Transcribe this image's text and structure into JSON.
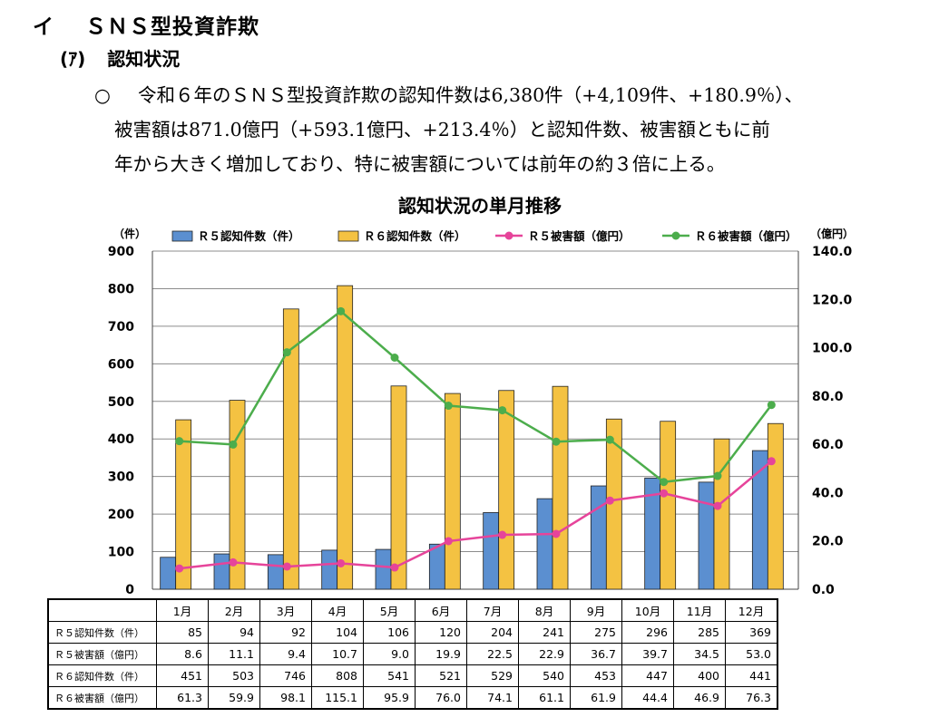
{
  "heading": {
    "marker": "イ",
    "title": "ＳＮＳ型投資詐欺"
  },
  "subheading": {
    "marker": "(ｱ)",
    "title": "認知状況"
  },
  "paragraph": {
    "bullet": "○",
    "line1": "令和６年のＳＮＳ型投資詐欺の認知件数は6,380件（+4,109件、+180.9％）、",
    "line2": "被害額は871.0億円（+593.1億円、+213.4％）と認知件数、被害額ともに前",
    "line3": "年から大きく増加しており、特に被害額については前年の約３倍に上る。"
  },
  "chart_data": {
    "type": "bar+line",
    "title": "認知状況の単月推移",
    "left_axis": {
      "unit": "（件）",
      "min": 0,
      "max": 900,
      "ticks": [
        "0",
        "100",
        "200",
        "300",
        "400",
        "500",
        "600",
        "700",
        "800",
        "900"
      ]
    },
    "right_axis": {
      "unit": "（億円）",
      "min": 0,
      "max": 140,
      "ticks": [
        "0.0",
        "20.0",
        "40.0",
        "60.0",
        "80.0",
        "100.0",
        "120.0",
        "140.0"
      ]
    },
    "categories": [
      "1月",
      "2月",
      "3月",
      "4月",
      "5月",
      "6月",
      "7月",
      "8月",
      "9月",
      "10月",
      "11月",
      "12月"
    ],
    "series": [
      {
        "name": "Ｒ５認知件数（件）",
        "kind": "bar",
        "axis": "left",
        "color": "#5b8fd0",
        "values": [
          85,
          94,
          92,
          104,
          106,
          120,
          204,
          241,
          275,
          296,
          285,
          369
        ]
      },
      {
        "name": "Ｒ６認知件数（件）",
        "kind": "bar",
        "axis": "left",
        "color": "#f4c242",
        "values": [
          451,
          503,
          746,
          808,
          541,
          521,
          529,
          540,
          453,
          447,
          400,
          441
        ]
      },
      {
        "name": "Ｒ５被害額（億円）",
        "kind": "line",
        "axis": "right",
        "color": "#e6449a",
        "values": [
          8.6,
          11.1,
          9.4,
          10.7,
          9.0,
          19.9,
          22.5,
          22.9,
          36.7,
          39.7,
          34.5,
          53.0
        ]
      },
      {
        "name": "Ｒ６被害額（億円）",
        "kind": "line",
        "axis": "right",
        "color": "#4cad4c",
        "values": [
          61.3,
          59.9,
          98.1,
          115.1,
          95.9,
          76.0,
          74.1,
          61.1,
          61.9,
          44.4,
          46.9,
          76.3
        ]
      }
    ]
  },
  "table": {
    "headers": [
      "1月",
      "2月",
      "3月",
      "4月",
      "5月",
      "6月",
      "7月",
      "8月",
      "9月",
      "10月",
      "11月",
      "12月"
    ],
    "rows": [
      {
        "label": "Ｒ５認知件数（件）",
        "values": [
          "85",
          "94",
          "92",
          "104",
          "106",
          "120",
          "204",
          "241",
          "275",
          "296",
          "285",
          "369"
        ]
      },
      {
        "label": "Ｒ５被害額（億円）",
        "values": [
          "8.6",
          "11.1",
          "9.4",
          "10.7",
          "9.0",
          "19.9",
          "22.5",
          "22.9",
          "36.7",
          "39.7",
          "34.5",
          "53.0"
        ]
      },
      {
        "label": "Ｒ６認知件数（件）",
        "values": [
          "451",
          "503",
          "746",
          "808",
          "541",
          "521",
          "529",
          "540",
          "453",
          "447",
          "400",
          "441"
        ]
      },
      {
        "label": "Ｒ６被害額（億円）",
        "values": [
          "61.3",
          "59.9",
          "98.1",
          "115.1",
          "95.9",
          "76.0",
          "74.1",
          "61.1",
          "61.9",
          "44.4",
          "46.9",
          "76.3"
        ]
      }
    ]
  }
}
